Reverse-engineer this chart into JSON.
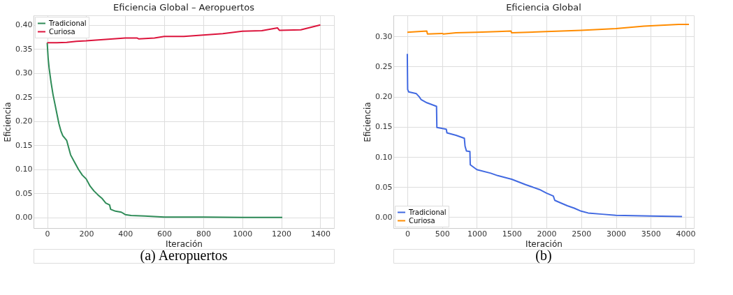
{
  "chart_data": [
    {
      "type": "line",
      "title": "Eficiencia Global – Aeropuertos",
      "xlabel": "Iteración",
      "ylabel": "Eficiencia",
      "annotations": [
        "(a) Aeropuertos"
      ],
      "legend": "top left",
      "grid": true,
      "xlim": [
        -70,
        1470
      ],
      "ylim": [
        -0.022,
        0.42
      ],
      "xticks": [
        0,
        200,
        400,
        600,
        800,
        1000,
        1200,
        1400
      ],
      "yticks": [
        {
          "value": 0,
          "label": "0.00"
        },
        {
          "value": 0.05,
          "label": "0.05"
        },
        {
          "value": 0.1,
          "label": "0.10"
        },
        {
          "value": 0.15,
          "label": "0.15"
        },
        {
          "value": 0.2,
          "label": "0.20"
        },
        {
          "value": 0.25,
          "label": "0.25"
        },
        {
          "value": 0.3,
          "label": "0.30"
        },
        {
          "value": 0.35,
          "label": "0.35"
        },
        {
          "value": 0.4,
          "label": "0.40"
        }
      ],
      "series": [
        {
          "name": "Tradicional",
          "color": "#2e8b57",
          "x": [
            0,
            5,
            10,
            20,
            30,
            40,
            50,
            60,
            70,
            80,
            100,
            110,
            120,
            140,
            160,
            180,
            200,
            220,
            240,
            260,
            280,
            300,
            320,
            325,
            350,
            380,
            400,
            430,
            500,
            600,
            800,
            1000,
            1205
          ],
          "values": [
            0.363,
            0.33,
            0.31,
            0.28,
            0.255,
            0.235,
            0.215,
            0.195,
            0.18,
            0.17,
            0.16,
            0.145,
            0.13,
            0.115,
            0.1,
            0.088,
            0.08,
            0.065,
            0.055,
            0.047,
            0.04,
            0.03,
            0.026,
            0.017,
            0.013,
            0.011,
            0.006,
            0.004,
            0.003,
            0.001,
            0.001,
            0,
            0
          ]
        },
        {
          "name": "Curiosa",
          "color": "#dc143c",
          "x": [
            0,
            50,
            100,
            150,
            200,
            300,
            400,
            460,
            470,
            550,
            600,
            700,
            800,
            900,
            1000,
            1100,
            1180,
            1190,
            1300,
            1400
          ],
          "values": [
            0.363,
            0.363,
            0.364,
            0.366,
            0.367,
            0.37,
            0.373,
            0.373,
            0.371,
            0.373,
            0.376,
            0.376,
            0.379,
            0.382,
            0.387,
            0.388,
            0.394,
            0.389,
            0.39,
            0.4
          ]
        }
      ]
    },
    {
      "type": "line",
      "title": "Eficiencia Global",
      "xlabel": "Iteración",
      "ylabel": "Eficiencia",
      "annotations": [
        "(b)"
      ],
      "legend": "bottom left",
      "grid": true,
      "xlim": [
        -200,
        4120
      ],
      "ylim": [
        -0.018,
        0.335
      ],
      "xticks": [
        0,
        500,
        1000,
        1500,
        2000,
        2500,
        3000,
        3500,
        4000
      ],
      "yticks": [
        {
          "value": 0,
          "label": "0.00"
        },
        {
          "value": 0.05,
          "label": "0.05"
        },
        {
          "value": 0.1,
          "label": "0.10"
        },
        {
          "value": 0.15,
          "label": "0.15"
        },
        {
          "value": 0.2,
          "label": "0.20"
        },
        {
          "value": 0.25,
          "label": "0.25"
        },
        {
          "value": 0.3,
          "label": "0.30"
        }
      ],
      "series": [
        {
          "name": "Tradicional",
          "color": "#4169e1",
          "x": [
            0,
            5,
            20,
            130,
            170,
            200,
            280,
            420,
            425,
            560,
            570,
            700,
            820,
            830,
            850,
            900,
            905,
            1000,
            1200,
            1300,
            1500,
            1700,
            1900,
            2000,
            2100,
            2120,
            2200,
            2300,
            2400,
            2500,
            2600,
            2800,
            3000,
            3500,
            3950
          ],
          "values": [
            0.271,
            0.212,
            0.208,
            0.205,
            0.2,
            0.195,
            0.19,
            0.184,
            0.149,
            0.146,
            0.14,
            0.136,
            0.131,
            0.118,
            0.11,
            0.109,
            0.087,
            0.079,
            0.073,
            0.069,
            0.063,
            0.054,
            0.046,
            0.04,
            0.035,
            0.028,
            0.024,
            0.019,
            0.015,
            0.01,
            0.007,
            0.005,
            0.003,
            0.002,
            0.001
          ]
        },
        {
          "name": "Curiosa",
          "color": "#ff8c00",
          "x": [
            0,
            280,
            290,
            500,
            520,
            700,
            1000,
            1300,
            1490,
            1500,
            2000,
            2500,
            3000,
            3400,
            3900,
            4050
          ],
          "values": [
            0.307,
            0.309,
            0.304,
            0.305,
            0.304,
            0.306,
            0.307,
            0.308,
            0.309,
            0.306,
            0.308,
            0.31,
            0.313,
            0.317,
            0.32,
            0.32
          ]
        }
      ]
    }
  ]
}
